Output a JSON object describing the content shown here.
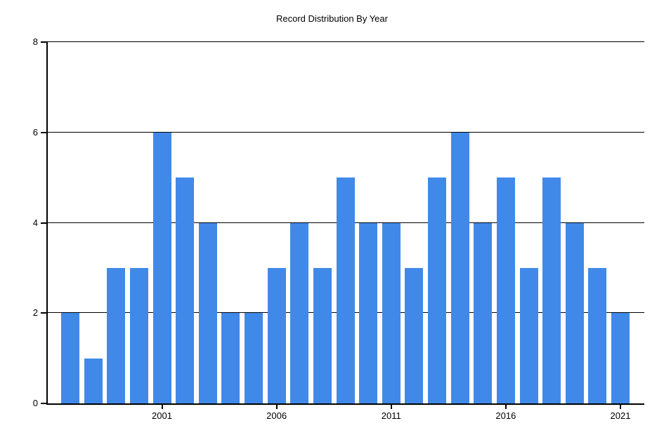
{
  "title": "Record Distribution By Year",
  "chart_data": {
    "type": "bar",
    "title": "Record Distribution By Year",
    "xlabel": "",
    "ylabel": "",
    "categories": [
      1997,
      1998,
      1999,
      2000,
      2001,
      2002,
      2003,
      2004,
      2005,
      2006,
      2007,
      2008,
      2009,
      2010,
      2011,
      2012,
      2013,
      2014,
      2015,
      2016,
      2017,
      2018,
      2019,
      2020,
      2021
    ],
    "values": [
      2,
      1,
      3,
      3,
      6,
      5,
      4,
      2,
      2,
      3,
      4,
      3,
      5,
      4,
      4,
      3,
      5,
      6,
      4,
      5,
      3,
      5,
      4,
      3,
      2
    ],
    "ylim": [
      0,
      8
    ],
    "yticks": [
      0,
      2,
      4,
      6,
      8
    ],
    "xticks": [
      2001,
      2006,
      2011,
      2016,
      2021
    ],
    "bar_color": "#4189E8",
    "axis_color": "#000000",
    "grid": true,
    "legend": false,
    "background": "#ffffff"
  }
}
